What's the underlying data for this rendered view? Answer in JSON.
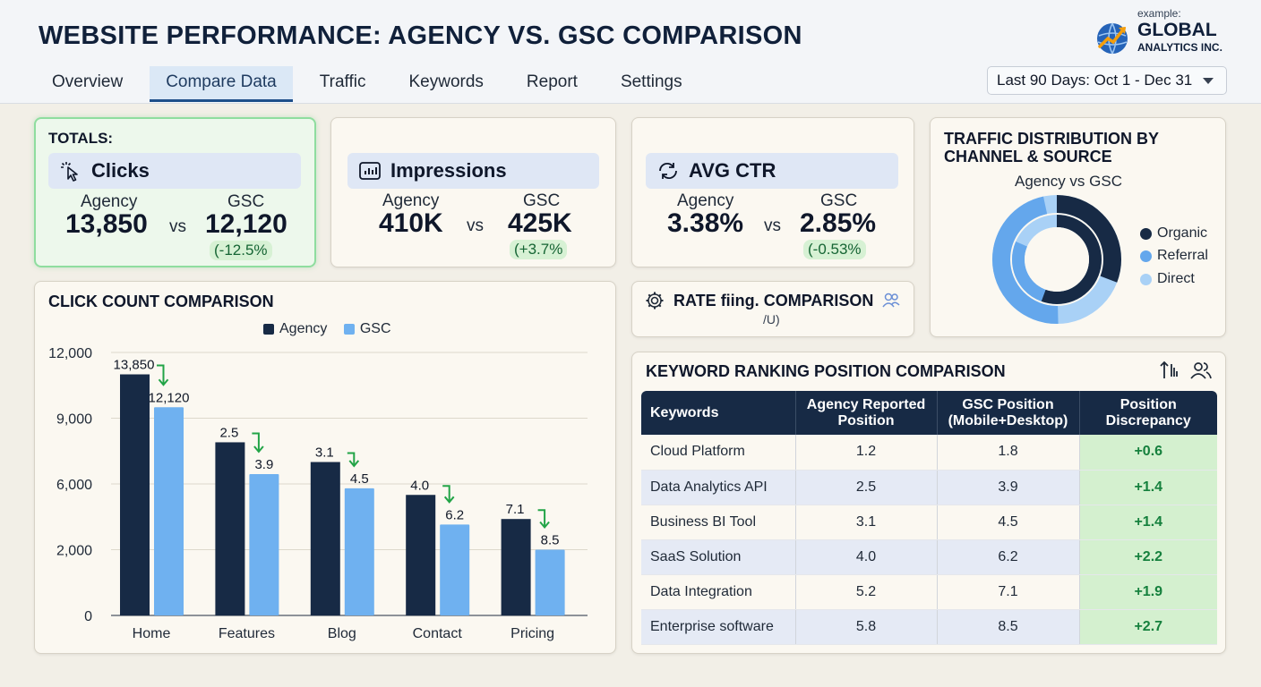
{
  "header": {
    "title": "WEBSITE PERFORMANCE: AGENCY VS. GSC COMPARISON",
    "tabs": [
      {
        "label": "Overview",
        "active": false
      },
      {
        "label": "Compare Data",
        "active": true
      },
      {
        "label": "Traffic",
        "active": false
      },
      {
        "label": "Keywords",
        "active": false
      },
      {
        "label": "Report",
        "active": false
      },
      {
        "label": "Settings",
        "active": false
      }
    ],
    "logo": {
      "small": "example:",
      "name": "GLOBAL",
      "sub": "ANALYTICS INC."
    },
    "date_range": "Last 90 Days: Oct 1 - Dec 31"
  },
  "totals": {
    "label": "TOTALS:",
    "agency_label": "Agency",
    "gsc_label": "GSC",
    "vs": "vs",
    "clicks": {
      "title": "Clicks",
      "icon": "cursor-click-icon",
      "agency": "13,850",
      "gsc": "12,120",
      "delta": "(-12.5%"
    },
    "impressions": {
      "title": "Impressions",
      "icon": "bar-chart-icon",
      "agency": "410K",
      "gsc": "425K",
      "delta": "(+3.7%"
    },
    "ctr": {
      "title": "AVG CTR",
      "icon": "swap-arrows-icon",
      "agency": "3.38%",
      "gsc": "2.85%",
      "delta": "(-0.53%"
    }
  },
  "traffic_distribution": {
    "title_line1": "TRAFFIC DISTRIBUTION BY",
    "title_line2": "CHANNEL & SOURCE",
    "subtitle": "Agency vs GSC",
    "legend": [
      {
        "label": "Organic",
        "color": "#172a45"
      },
      {
        "label": "Referral",
        "color": "#64a7ec"
      },
      {
        "label": "Direct",
        "color": "#a9d1f6"
      }
    ]
  },
  "rate_card": {
    "title": "RATE",
    "title_garbled": "fiing.",
    "title_end": "COMPARISON",
    "sub": "/U)"
  },
  "click_chart": {
    "title": "CLICK COUNT COMPARISON",
    "legend": [
      {
        "label": "Agency",
        "color": "#172a45"
      },
      {
        "label": "GSC",
        "color": "#6fb1f0"
      }
    ]
  },
  "chart_data": {
    "type": "bar",
    "categories": [
      "Home",
      "Features",
      "Blog",
      "Contact",
      "Pricing"
    ],
    "series": [
      {
        "name": "Agency",
        "values": [
          11000,
          7900,
          7000,
          5500,
          4400
        ],
        "labels": [
          "13,850",
          "2.5",
          "3.1",
          "4.0",
          "7.1"
        ]
      },
      {
        "name": "GSC",
        "values": [
          9500,
          6450,
          5800,
          4150,
          3000
        ],
        "labels": [
          "12,120",
          "3.9",
          "4.5",
          "6.2",
          "8.5"
        ]
      }
    ],
    "yticks": [
      "12,000",
      "9,000",
      "6,000",
      "2,000",
      "0"
    ],
    "ylim": [
      0,
      12000
    ],
    "grid": true,
    "legend_position": "top-center",
    "colors": {
      "agency": "#172a45",
      "gsc": "#6fb1f0",
      "arrow": "#22a447"
    }
  },
  "keyword_table": {
    "title": "KEYWORD RANKING POSITION COMPARISON",
    "headers": [
      "Keywords",
      "Agency Reported Position",
      "GSC Position (Mobile+Desktop)",
      "Position Discrepancy"
    ],
    "rows": [
      [
        "Cloud Platform",
        "1.2",
        "1.8",
        "+0.6"
      ],
      [
        "Data Analytics API",
        "2.5",
        "3.9",
        "+1.4"
      ],
      [
        "Business BI Tool",
        "3.1",
        "4.5",
        "+1.4"
      ],
      [
        "SaaS Solution",
        "4.0",
        "6.2",
        "+2.2"
      ],
      [
        "Data Integration",
        "5.2",
        "7.1",
        "+1.9"
      ],
      [
        "Enterprise software",
        "5.8",
        "8.5",
        "+2.7"
      ]
    ]
  }
}
